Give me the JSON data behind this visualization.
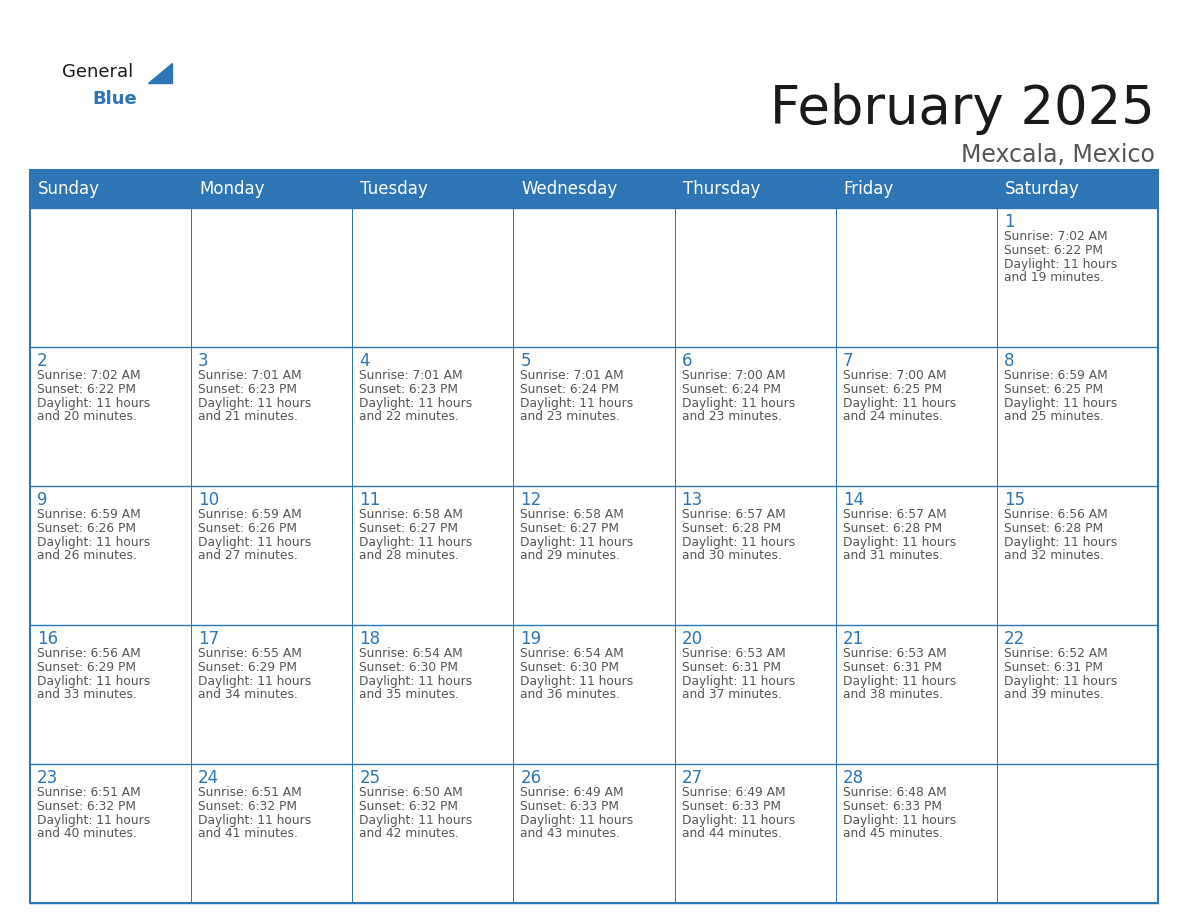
{
  "title": "February 2025",
  "subtitle": "Mexcala, Mexico",
  "header_color": "#2E75B6",
  "header_text_color": "#FFFFFF",
  "cell_bg_color": "#FFFFFF",
  "cell_border_color": "#2E75B6",
  "day_number_color": "#2E75B6",
  "detail_text_color": "#555555",
  "bg_color": "#FFFFFF",
  "days_of_week": [
    "Sunday",
    "Monday",
    "Tuesday",
    "Wednesday",
    "Thursday",
    "Friday",
    "Saturday"
  ],
  "weeks": [
    [
      {
        "day": null,
        "sunrise": null,
        "sunset": null,
        "daylight": null
      },
      {
        "day": null,
        "sunrise": null,
        "sunset": null,
        "daylight": null
      },
      {
        "day": null,
        "sunrise": null,
        "sunset": null,
        "daylight": null
      },
      {
        "day": null,
        "sunrise": null,
        "sunset": null,
        "daylight": null
      },
      {
        "day": null,
        "sunrise": null,
        "sunset": null,
        "daylight": null
      },
      {
        "day": null,
        "sunrise": null,
        "sunset": null,
        "daylight": null
      },
      {
        "day": 1,
        "sunrise": "7:02 AM",
        "sunset": "6:22 PM",
        "daylight": "11 hours and 19 minutes."
      }
    ],
    [
      {
        "day": 2,
        "sunrise": "7:02 AM",
        "sunset": "6:22 PM",
        "daylight": "11 hours and 20 minutes."
      },
      {
        "day": 3,
        "sunrise": "7:01 AM",
        "sunset": "6:23 PM",
        "daylight": "11 hours and 21 minutes."
      },
      {
        "day": 4,
        "sunrise": "7:01 AM",
        "sunset": "6:23 PM",
        "daylight": "11 hours and 22 minutes."
      },
      {
        "day": 5,
        "sunrise": "7:01 AM",
        "sunset": "6:24 PM",
        "daylight": "11 hours and 23 minutes."
      },
      {
        "day": 6,
        "sunrise": "7:00 AM",
        "sunset": "6:24 PM",
        "daylight": "11 hours and 23 minutes."
      },
      {
        "day": 7,
        "sunrise": "7:00 AM",
        "sunset": "6:25 PM",
        "daylight": "11 hours and 24 minutes."
      },
      {
        "day": 8,
        "sunrise": "6:59 AM",
        "sunset": "6:25 PM",
        "daylight": "11 hours and 25 minutes."
      }
    ],
    [
      {
        "day": 9,
        "sunrise": "6:59 AM",
        "sunset": "6:26 PM",
        "daylight": "11 hours and 26 minutes."
      },
      {
        "day": 10,
        "sunrise": "6:59 AM",
        "sunset": "6:26 PM",
        "daylight": "11 hours and 27 minutes."
      },
      {
        "day": 11,
        "sunrise": "6:58 AM",
        "sunset": "6:27 PM",
        "daylight": "11 hours and 28 minutes."
      },
      {
        "day": 12,
        "sunrise": "6:58 AM",
        "sunset": "6:27 PM",
        "daylight": "11 hours and 29 minutes."
      },
      {
        "day": 13,
        "sunrise": "6:57 AM",
        "sunset": "6:28 PM",
        "daylight": "11 hours and 30 minutes."
      },
      {
        "day": 14,
        "sunrise": "6:57 AM",
        "sunset": "6:28 PM",
        "daylight": "11 hours and 31 minutes."
      },
      {
        "day": 15,
        "sunrise": "6:56 AM",
        "sunset": "6:28 PM",
        "daylight": "11 hours and 32 minutes."
      }
    ],
    [
      {
        "day": 16,
        "sunrise": "6:56 AM",
        "sunset": "6:29 PM",
        "daylight": "11 hours and 33 minutes."
      },
      {
        "day": 17,
        "sunrise": "6:55 AM",
        "sunset": "6:29 PM",
        "daylight": "11 hours and 34 minutes."
      },
      {
        "day": 18,
        "sunrise": "6:54 AM",
        "sunset": "6:30 PM",
        "daylight": "11 hours and 35 minutes."
      },
      {
        "day": 19,
        "sunrise": "6:54 AM",
        "sunset": "6:30 PM",
        "daylight": "11 hours and 36 minutes."
      },
      {
        "day": 20,
        "sunrise": "6:53 AM",
        "sunset": "6:31 PM",
        "daylight": "11 hours and 37 minutes."
      },
      {
        "day": 21,
        "sunrise": "6:53 AM",
        "sunset": "6:31 PM",
        "daylight": "11 hours and 38 minutes."
      },
      {
        "day": 22,
        "sunrise": "6:52 AM",
        "sunset": "6:31 PM",
        "daylight": "11 hours and 39 minutes."
      }
    ],
    [
      {
        "day": 23,
        "sunrise": "6:51 AM",
        "sunset": "6:32 PM",
        "daylight": "11 hours and 40 minutes."
      },
      {
        "day": 24,
        "sunrise": "6:51 AM",
        "sunset": "6:32 PM",
        "daylight": "11 hours and 41 minutes."
      },
      {
        "day": 25,
        "sunrise": "6:50 AM",
        "sunset": "6:32 PM",
        "daylight": "11 hours and 42 minutes."
      },
      {
        "day": 26,
        "sunrise": "6:49 AM",
        "sunset": "6:33 PM",
        "daylight": "11 hours and 43 minutes."
      },
      {
        "day": 27,
        "sunrise": "6:49 AM",
        "sunset": "6:33 PM",
        "daylight": "11 hours and 44 minutes."
      },
      {
        "day": 28,
        "sunrise": "6:48 AM",
        "sunset": "6:33 PM",
        "daylight": "11 hours and 45 minutes."
      },
      {
        "day": null,
        "sunrise": null,
        "sunset": null,
        "daylight": null
      }
    ]
  ],
  "logo_text_general": "General",
  "logo_text_blue": "Blue",
  "logo_triangle_color": "#2E75B6",
  "title_fontsize": 38,
  "subtitle_fontsize": 17,
  "header_fontsize": 12,
  "day_number_fontsize": 12,
  "detail_fontsize": 8.8
}
